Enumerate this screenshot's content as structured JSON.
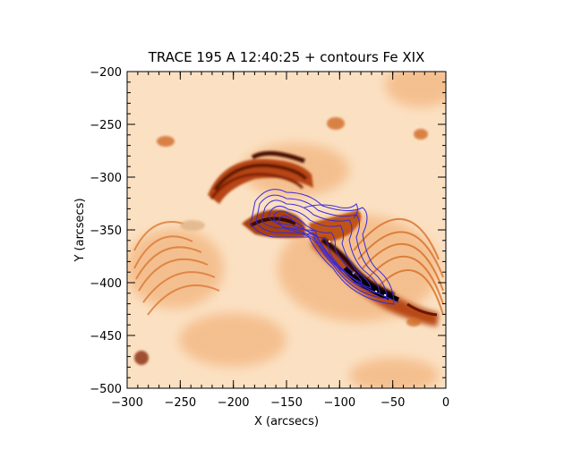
{
  "figure": {
    "title": "TRACE 195 A 12:40:25 + contours Fe XIX",
    "xlabel": "X (arcsecs)",
    "ylabel": "Y (arcsecs)"
  },
  "axes": {
    "x_range": [
      -300,
      0
    ],
    "y_range": [
      -500,
      -200
    ],
    "x_ticks": [
      {
        "value": -300,
        "label": "−300"
      },
      {
        "value": -250,
        "label": "−250"
      },
      {
        "value": -200,
        "label": "−200"
      },
      {
        "value": -150,
        "label": "−150"
      },
      {
        "value": -100,
        "label": "−100"
      },
      {
        "value": -50,
        "label": "−50"
      },
      {
        "value": 0,
        "label": "0"
      }
    ],
    "y_ticks": [
      {
        "value": -200,
        "label": "−200"
      },
      {
        "value": -250,
        "label": "−250"
      },
      {
        "value": -300,
        "label": "−300"
      },
      {
        "value": -350,
        "label": "−350"
      },
      {
        "value": -400,
        "label": "−400"
      },
      {
        "value": -450,
        "label": "−450"
      },
      {
        "value": -500,
        "label": "−500"
      }
    ],
    "x_minor_step": 10,
    "y_minor_step": 10
  },
  "colors": {
    "background_light": "#fce3c6",
    "emission_mid": "#e07a2a",
    "emission_dark": "#3a0a02",
    "contour": "#3a2ad8"
  }
}
